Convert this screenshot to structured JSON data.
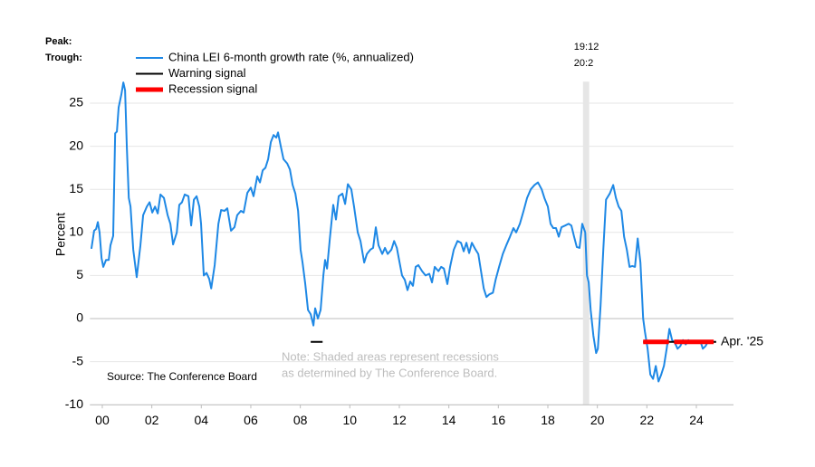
{
  "chart_data": {
    "type": "line",
    "y_label": "Percent",
    "peak_label": "Peak:",
    "trough_label": "Trough:",
    "note": [
      "Note: Shaded areas represent recessions",
      "as determined by The Conference Board."
    ],
    "source": "Source: The Conference Board",
    "end_label": "Apr. '25",
    "recessions": [
      {
        "peak": "19:12",
        "trough": "20:2",
        "start": 2019.92,
        "end": 2020.17
      }
    ],
    "xlim": [
      2000,
      2026
    ],
    "ylim": [
      -10,
      27.5
    ],
    "xticks": [
      {
        "value": 2000.5,
        "label": "00"
      },
      {
        "value": 2002.5,
        "label": "02"
      },
      {
        "value": 2004.5,
        "label": "04"
      },
      {
        "value": 2006.5,
        "label": "06"
      },
      {
        "value": 2008.5,
        "label": "08"
      },
      {
        "value": 2010.5,
        "label": "10"
      },
      {
        "value": 2012.5,
        "label": "12"
      },
      {
        "value": 2014.5,
        "label": "14"
      },
      {
        "value": 2016.5,
        "label": "16"
      },
      {
        "value": 2018.5,
        "label": "18"
      },
      {
        "value": 2020.5,
        "label": "20"
      },
      {
        "value": 2022.5,
        "label": "22"
      },
      {
        "value": 2024.5,
        "label": "24"
      }
    ],
    "yticks": [
      -10,
      -5,
      0,
      5,
      10,
      15,
      20,
      25
    ],
    "grid": true,
    "series": [
      {
        "name": "China LEI 6-month growth rate (%, annualized)",
        "color": "#1e88e5",
        "width": 2,
        "x": [
          2000.06,
          2000.17,
          2000.25,
          2000.32,
          2000.39,
          2000.47,
          2000.54,
          2000.65,
          2000.76,
          2000.83,
          2000.94,
          2001.02,
          2001.09,
          2001.16,
          2001.27,
          2001.35,
          2001.42,
          2001.49,
          2001.57,
          2001.64,
          2001.75,
          2001.89,
          2002.04,
          2002.15,
          2002.3,
          2002.41,
          2002.52,
          2002.63,
          2002.74,
          2002.85,
          2002.99,
          2003.14,
          2003.25,
          2003.36,
          2003.51,
          2003.61,
          2003.72,
          2003.83,
          2003.98,
          2004.09,
          2004.2,
          2004.31,
          2004.42,
          2004.49,
          2004.6,
          2004.71,
          2004.82,
          2004.9,
          2005.04,
          2005.19,
          2005.3,
          2005.44,
          2005.55,
          2005.7,
          2005.84,
          2005.95,
          2006.1,
          2006.21,
          2006.36,
          2006.5,
          2006.61,
          2006.76,
          2006.87,
          2006.98,
          2007.09,
          2007.2,
          2007.31,
          2007.42,
          2007.53,
          2007.6,
          2007.71,
          2007.82,
          2007.97,
          2008.08,
          2008.19,
          2008.3,
          2008.41,
          2008.51,
          2008.59,
          2008.7,
          2008.81,
          2008.92,
          2009.03,
          2009.1,
          2009.21,
          2009.32,
          2009.43,
          2009.5,
          2009.58,
          2009.69,
          2009.83,
          2009.94,
          2010.05,
          2010.2,
          2010.31,
          2010.42,
          2010.56,
          2010.67,
          2010.82,
          2010.93,
          2011.08,
          2011.19,
          2011.33,
          2011.44,
          2011.55,
          2011.66,
          2011.81,
          2011.92,
          2012.03,
          2012.18,
          2012.29,
          2012.4,
          2012.51,
          2012.61,
          2012.72,
          2012.83,
          2012.94,
          2013.05,
          2013.16,
          2013.27,
          2013.42,
          2013.56,
          2013.71,
          2013.82,
          2013.93,
          2014.08,
          2014.19,
          2014.3,
          2014.44,
          2014.55,
          2014.7,
          2014.85,
          2014.99,
          2015.1,
          2015.21,
          2015.32,
          2015.43,
          2015.58,
          2015.69,
          2015.8,
          2015.91,
          2016.02,
          2016.13,
          2016.28,
          2016.39,
          2016.53,
          2016.68,
          2016.82,
          2016.97,
          2017.11,
          2017.22,
          2017.37,
          2017.52,
          2017.66,
          2017.81,
          2017.96,
          2018.1,
          2018.25,
          2018.36,
          2018.5,
          2018.61,
          2018.72,
          2018.83,
          2018.94,
          2019.05,
          2019.2,
          2019.34,
          2019.45,
          2019.56,
          2019.67,
          2019.78,
          2019.89,
          2020.01,
          2020.08,
          2020.15,
          2020.23,
          2020.34,
          2020.45,
          2020.52,
          2020.63,
          2020.74,
          2020.85,
          2021.0,
          2021.14,
          2021.25,
          2021.36,
          2021.47,
          2021.58,
          2021.69,
          2021.8,
          2021.91,
          2022.02,
          2022.13,
          2022.24,
          2022.35,
          2022.42,
          2022.53,
          2022.64,
          2022.75,
          2022.86,
          2022.97,
          2023.08,
          2023.19,
          2023.3,
          2023.41,
          2023.52,
          2023.63,
          2023.74,
          2023.85,
          2023.96,
          2024.07,
          2024.18,
          2024.29,
          2024.4,
          2024.51,
          2024.66,
          2024.76,
          2024.87,
          2024.98,
          2025.09,
          2025.2
        ],
        "values": [
          8.1,
          10.2,
          10.4,
          11.2,
          10.0,
          7.0,
          6.0,
          6.8,
          6.8,
          8.5,
          9.6,
          21.5,
          21.7,
          24.5,
          26.0,
          27.4,
          26.5,
          20.0,
          14.0,
          13.0,
          8.0,
          4.8,
          8.5,
          12.0,
          13.0,
          13.5,
          12.3,
          13.0,
          12.2,
          14.4,
          14.0,
          12.0,
          11.0,
          8.6,
          10.0,
          13.2,
          13.5,
          14.4,
          14.2,
          10.8,
          13.8,
          14.2,
          13.0,
          11.0,
          5.0,
          5.3,
          4.6,
          3.5,
          6.2,
          11.0,
          12.6,
          12.5,
          12.8,
          10.2,
          10.6,
          12.0,
          12.5,
          12.3,
          14.6,
          15.2,
          14.2,
          16.5,
          15.8,
          17.2,
          17.5,
          18.5,
          20.5,
          21.3,
          21.0,
          21.6,
          20.0,
          18.5,
          18.0,
          17.3,
          15.5,
          14.5,
          12.5,
          8.0,
          6.5,
          4.0,
          1.0,
          0.5,
          -0.8,
          1.2,
          0.0,
          1.0,
          5.0,
          6.8,
          5.8,
          9.2,
          13.2,
          11.5,
          14.2,
          14.5,
          13.3,
          15.6,
          15.0,
          13.0,
          10.0,
          9.0,
          6.5,
          7.5,
          8.0,
          8.2,
          10.6,
          8.5,
          7.5,
          8.2,
          7.5,
          8.0,
          9.0,
          8.2,
          6.5,
          5.0,
          4.5,
          3.3,
          4.3,
          3.8,
          6.0,
          6.2,
          5.5,
          5.0,
          5.2,
          4.2,
          6.0,
          5.5,
          6.0,
          5.8,
          4.0,
          6.0,
          8.0,
          9.0,
          8.8,
          7.8,
          8.8,
          7.6,
          8.8,
          8.0,
          7.5,
          5.5,
          3.5,
          2.5,
          2.8,
          3.0,
          4.5,
          6.0,
          7.5,
          8.5,
          9.5,
          10.5,
          10.0,
          11.0,
          12.5,
          14.0,
          15.0,
          15.5,
          15.8,
          15.0,
          14.0,
          13.0,
          11.0,
          10.5,
          10.5,
          9.5,
          10.6,
          10.8,
          11.0,
          10.8,
          9.5,
          8.3,
          8.2,
          11.0,
          10.0,
          5.0,
          4.2,
          1.0,
          -2.0,
          -4.0,
          -3.5,
          1.5,
          8.0,
          13.8,
          14.5,
          15.5,
          14.0,
          13.0,
          12.5,
          9.5,
          8.0,
          6.0,
          6.1,
          6.0,
          9.3,
          6.5,
          0.0,
          -1.5,
          -3.5,
          -6.5,
          -7.0,
          -5.5,
          -7.3,
          -6.5,
          -5.5,
          -3.5,
          -1.2,
          -2.5,
          -2.8,
          -3.5,
          -3.2,
          -2.5,
          -3.0,
          -2.5,
          -2.8,
          -2.6,
          -2.7,
          -2.6,
          -3.5,
          -3.2,
          -2.6,
          -2.8,
          -2.7
        ]
      },
      {
        "name": "Warning signal",
        "color": "#000000",
        "width": 2,
        "x": [
          2008.92,
          2009.4,
          2015.0,
          2022.35,
          2025.3
        ],
        "values": [
          -2.7,
          -2.7,
          null,
          -2.7,
          -2.7
        ]
      },
      {
        "name": "Recession signal",
        "color": "#ff0000",
        "width": 5,
        "x": [
          2022.35,
          2023.39,
          2023.5,
          2023.6,
          2025.2
        ],
        "values": [
          -2.7,
          -2.7,
          null,
          -2.7,
          -2.7
        ]
      }
    ]
  }
}
